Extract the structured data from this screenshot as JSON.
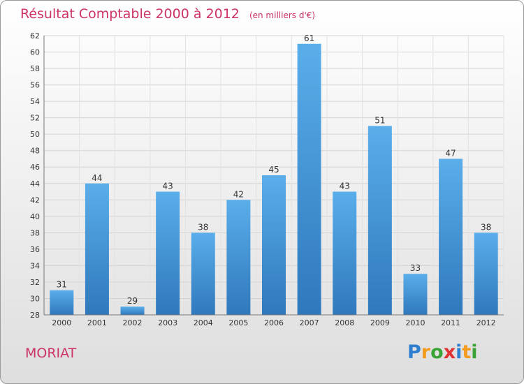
{
  "chart_data": {
    "type": "bar",
    "title": "Résultat Comptable 2000 à 2012",
    "subtitle": "(en milliers d'€)",
    "categories": [
      "2000",
      "2001",
      "2002",
      "2003",
      "2004",
      "2005",
      "2006",
      "2007",
      "2008",
      "2009",
      "2010",
      "2011",
      "2012"
    ],
    "values": [
      31,
      44,
      29,
      43,
      38,
      42,
      45,
      61,
      43,
      51,
      33,
      47,
      38
    ],
    "ylim": [
      28,
      62
    ],
    "yticks": [
      28,
      30,
      32,
      34,
      36,
      38,
      40,
      42,
      44,
      46,
      48,
      50,
      52,
      54,
      56,
      58,
      60,
      62
    ],
    "xlabel": "",
    "ylabel": "",
    "grid": true,
    "bar_color": "#3d8fd6"
  },
  "commune": "MORIAT",
  "brand": {
    "letters": [
      "P",
      "r",
      "o",
      "x",
      "i",
      "t",
      "i"
    ],
    "colors": [
      "#2f7fd0",
      "#f29b1e",
      "#3aa335",
      "#e03232",
      "#2f7fd0",
      "#f29b1e",
      "#3aa335"
    ]
  }
}
